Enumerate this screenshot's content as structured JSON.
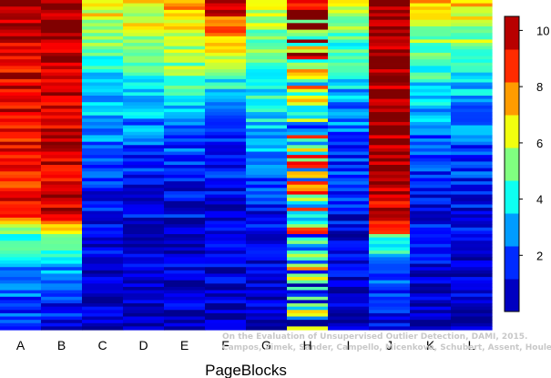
{
  "chart_data": {
    "type": "heatmap",
    "xlabel": "PageBlocks",
    "columns": [
      "A",
      "B",
      "C",
      "D",
      "E",
      "F",
      "G",
      "H",
      "I",
      "J",
      "K",
      "L"
    ],
    "row_count": 100,
    "colorbar": {
      "min": 0,
      "max": 10.5,
      "ticks": [
        2,
        4,
        6,
        8,
        10
      ]
    },
    "colormap": [
      "#00008f",
      "#0000ff",
      "#0080ff",
      "#00ffff",
      "#80ff80",
      "#ffff00",
      "#ff8000",
      "#ff0000",
      "#800000"
    ],
    "columns_profile": [
      {
        "name": "A",
        "profile": [
          [
            0,
            10.5
          ],
          [
            12,
            9.8
          ],
          [
            18,
            9.5
          ],
          [
            45,
            9.2
          ],
          [
            65,
            9.0
          ],
          [
            70,
            5.5
          ],
          [
            72,
            4.5
          ],
          [
            78,
            3.6
          ],
          [
            84,
            2.8
          ],
          [
            88,
            2.5
          ],
          [
            92,
            2.0
          ],
          [
            100,
            1.5
          ]
        ]
      },
      {
        "name": "B",
        "profile": [
          [
            0,
            10.5
          ],
          [
            12,
            10.3
          ],
          [
            18,
            10.0
          ],
          [
            45,
            9.8
          ],
          [
            65,
            9.6
          ],
          [
            70,
            6.0
          ],
          [
            74,
            4.5
          ],
          [
            78,
            3.5
          ],
          [
            84,
            2.5
          ],
          [
            92,
            1.5
          ],
          [
            100,
            1.0
          ]
        ]
      },
      {
        "name": "C",
        "profile": [
          [
            0,
            7.0
          ],
          [
            10,
            5.5
          ],
          [
            20,
            4.0
          ],
          [
            40,
            3.0
          ],
          [
            55,
            1.5
          ],
          [
            70,
            1.0
          ],
          [
            100,
            0.5
          ]
        ]
      },
      {
        "name": "D",
        "profile": [
          [
            0,
            6.5
          ],
          [
            10,
            6.0
          ],
          [
            20,
            5.0
          ],
          [
            35,
            3.0
          ],
          [
            50,
            1.5
          ],
          [
            70,
            1.0
          ],
          [
            100,
            0.5
          ]
        ]
      },
      {
        "name": "E",
        "profile": [
          [
            0,
            8.0
          ],
          [
            10,
            6.5
          ],
          [
            22,
            5.0
          ],
          [
            35,
            3.0
          ],
          [
            50,
            1.5
          ],
          [
            70,
            1.0
          ],
          [
            100,
            0.5
          ]
        ]
      },
      {
        "name": "F",
        "profile": [
          [
            0,
            10.5
          ],
          [
            5,
            8.5
          ],
          [
            15,
            6.5
          ],
          [
            25,
            4.0
          ],
          [
            40,
            2.0
          ],
          [
            60,
            1.0
          ],
          [
            100,
            0.5
          ]
        ]
      },
      {
        "name": "G",
        "profile": [
          [
            0,
            6.5
          ],
          [
            15,
            5.0
          ],
          [
            30,
            4.0
          ],
          [
            45,
            3.0
          ],
          [
            60,
            1.5
          ],
          [
            80,
            1.0
          ],
          [
            100,
            0.5
          ]
        ]
      },
      {
        "name": "H",
        "profile": [
          [
            0,
            9.5
          ],
          [
            20,
            7.0
          ],
          [
            40,
            5.0
          ],
          [
            60,
            6.0
          ],
          [
            80,
            4.5
          ],
          [
            100,
            3.0
          ]
        ]
      },
      {
        "name": "I",
        "profile": [
          [
            0,
            6.0
          ],
          [
            15,
            4.5
          ],
          [
            30,
            3.0
          ],
          [
            45,
            2.0
          ],
          [
            65,
            1.2
          ],
          [
            100,
            0.5
          ]
        ]
      },
      {
        "name": "J",
        "profile": [
          [
            0,
            10.5
          ],
          [
            25,
            10.3
          ],
          [
            55,
            10.0
          ],
          [
            70,
            9.5
          ],
          [
            72,
            5.0
          ],
          [
            80,
            3.0
          ],
          [
            90,
            1.5
          ],
          [
            100,
            0.8
          ]
        ]
      },
      {
        "name": "K",
        "profile": [
          [
            0,
            7.0
          ],
          [
            15,
            5.0
          ],
          [
            30,
            3.5
          ],
          [
            45,
            2.0
          ],
          [
            65,
            1.2
          ],
          [
            100,
            0.5
          ]
        ]
      },
      {
        "name": "L",
        "profile": [
          [
            0,
            7.0
          ],
          [
            15,
            5.0
          ],
          [
            30,
            3.0
          ],
          [
            45,
            2.0
          ],
          [
            65,
            1.2
          ],
          [
            100,
            0.5
          ]
        ]
      }
    ]
  },
  "credit_lines": [
    "On the Evaluation of Unsupervised Outlier Detection, DAMI, 2015.",
    "Campos, Zimek, Sander, Campello, Micenková, Schubert, Assent, Houle"
  ]
}
